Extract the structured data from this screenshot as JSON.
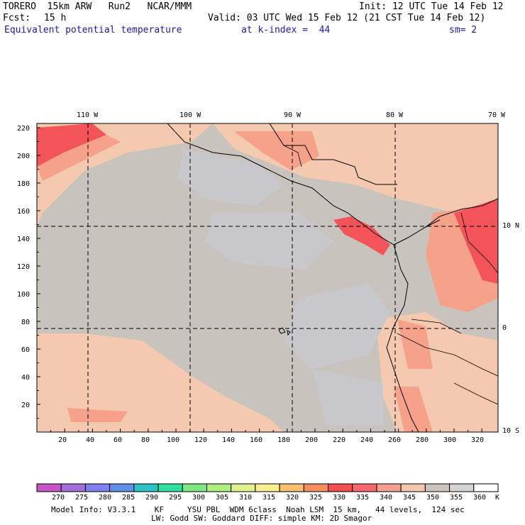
{
  "header": {
    "model": "TORERO  15km ARW   Run2   NCAR/MMM",
    "init": "Init: 12 UTC Tue 14 Feb 12",
    "fcst_label": "Fcst:",
    "fcst_value": "15 h",
    "valid": "Valid: 03 UTC Wed 15 Feb 12 (21 CST Tue 14 Feb 12)",
    "field": "Equivalent potential temperature",
    "level": "at k-index =  44",
    "smoothing": "sm= 2"
  },
  "map": {
    "top_lon_labels": [
      "110 W",
      "100 W",
      "90 W",
      "80 W",
      "70 W"
    ],
    "right_lat_labels": [
      "10 N",
      "0",
      "10 S"
    ],
    "left_grid_labels": [
      "220",
      "200",
      "180",
      "160",
      "140",
      "120",
      "100",
      "80",
      "60",
      "40",
      "20"
    ],
    "bottom_grid_labels": [
      "20",
      "40",
      "60",
      "80",
      "100",
      "120",
      "140",
      "160",
      "180",
      "200",
      "220",
      "240",
      "260",
      "280",
      "300",
      "320"
    ],
    "colors": {
      "base": "#c9c3bd",
      "light_gray": "#c8c8cc",
      "peach": "#f4c9b0",
      "salmon": "#f6a28a",
      "red": "#f2545a",
      "coral": "#f08070"
    }
  },
  "colorbar": {
    "labels": [
      "270",
      "275",
      "280",
      "285",
      "290",
      "295",
      "300",
      "305",
      "310",
      "315",
      "320",
      "325",
      "330",
      "335",
      "340",
      "345",
      "350",
      "355",
      "360"
    ],
    "unit": "K",
    "colors": [
      "#c855c8",
      "#a070d8",
      "#8080ee",
      "#6090e8",
      "#30c0c8",
      "#30e0a0",
      "#80e880",
      "#b0ee80",
      "#e0f090",
      "#f8f090",
      "#f8c070",
      "#f49060",
      "#f25050",
      "#f46870",
      "#f4a090",
      "#f4c8b0",
      "#ccc4bc",
      "#d4d4d4",
      "#ffffff"
    ]
  },
  "footer": {
    "line1": "Model Info: V3.3.1    KF     YSU PBL  WDM 6class  Noah LSM  15 km,   44 levels,  124 sec",
    "line2": "LW: Godd SW: Goddard DIFF: simple KM: 2D Smagor"
  }
}
